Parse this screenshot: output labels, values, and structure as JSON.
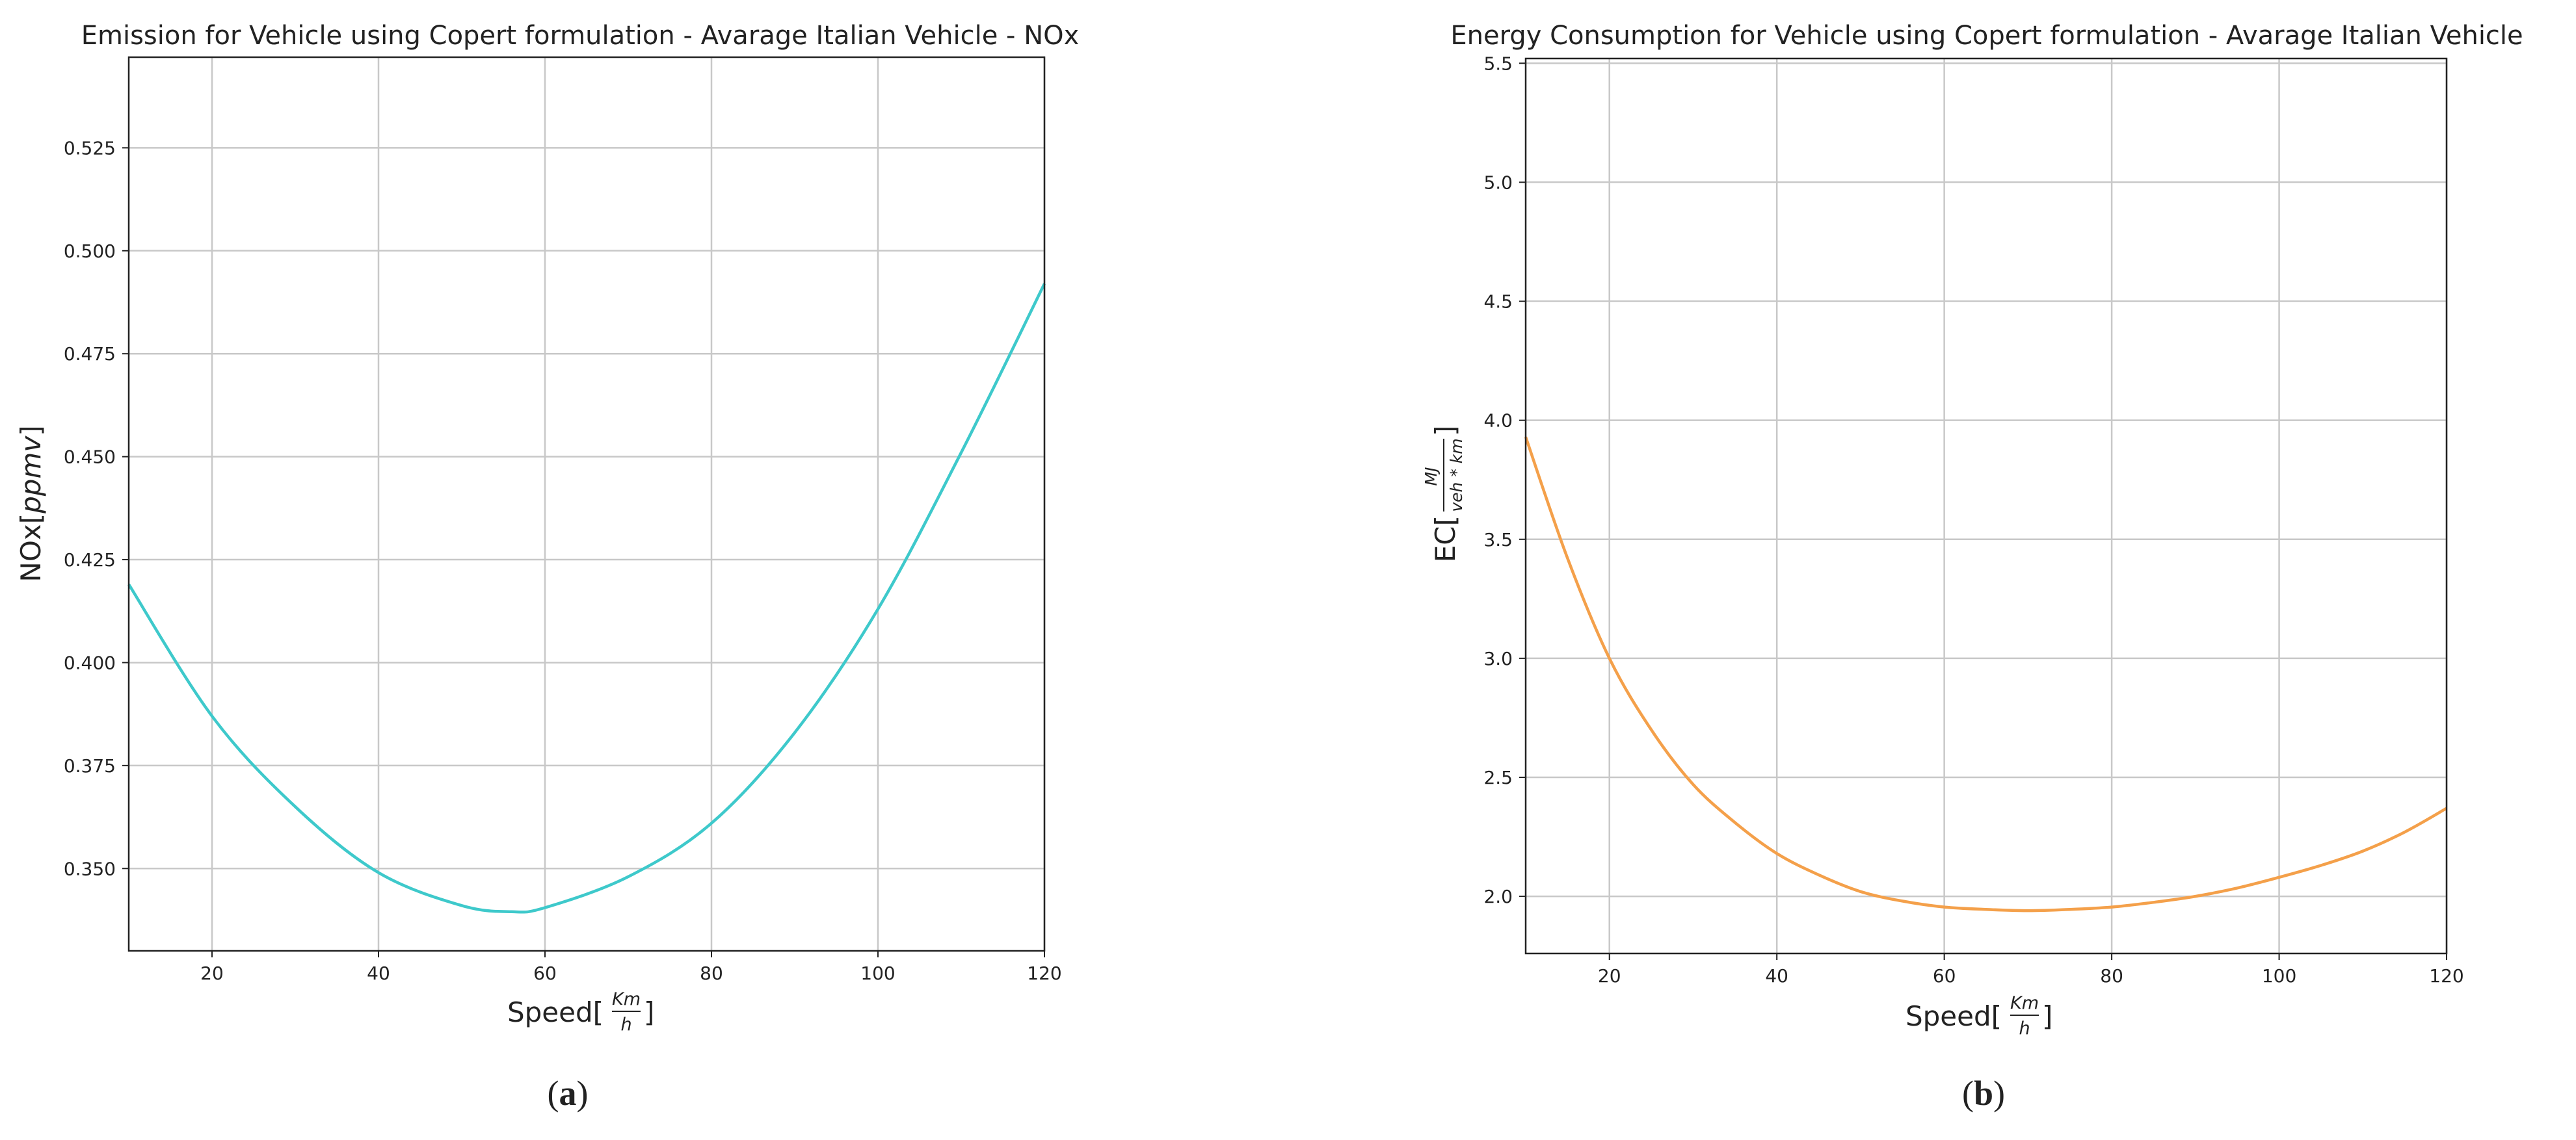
{
  "colors": {
    "nox_line": "#3EC9CB",
    "ec_line": "#F4A04A",
    "grid": "#c8c8c8",
    "axis": "#222222"
  },
  "chart_data": [
    {
      "type": "line",
      "title": "Emission for Vehicle using Copert formulation - Avarage Italian Vehicle - NOx",
      "xlabel": "Speed[Km/h]",
      "xlabel_parts": {
        "prefix": "Speed[",
        "num": "Km",
        "den": "h",
        "suffix": "]"
      },
      "ylabel": "NOx[ppmv]",
      "ylabel_parts": {
        "prefix": "NOx[",
        "italic": "ppmv",
        "suffix": "]"
      },
      "xlim": [
        10,
        120
      ],
      "ylim": [
        0.33,
        0.547
      ],
      "xticks": [
        20,
        40,
        60,
        80,
        100,
        120
      ],
      "xtick_labels": [
        "20",
        "40",
        "60",
        "80",
        "100",
        "120"
      ],
      "yticks": [
        0.35,
        0.375,
        0.4,
        0.425,
        0.45,
        0.475,
        0.5,
        0.525
      ],
      "ytick_labels": [
        "0.350",
        "0.375",
        "0.400",
        "0.425",
        "0.450",
        "0.475",
        "0.500",
        "0.525"
      ],
      "grid": true,
      "series": [
        {
          "name": "NOx",
          "x": [
            10,
            20,
            30,
            40,
            50,
            56,
            60,
            70,
            80,
            90,
            100,
            110,
            120
          ],
          "y": [
            0.419,
            0.387,
            0.365,
            0.349,
            0.341,
            0.3395,
            0.3405,
            0.348,
            0.361,
            0.383,
            0.413,
            0.451,
            0.492
          ]
        }
      ],
      "caption": "a"
    },
    {
      "type": "line",
      "title": "Energy Consumption for Vehicle using Copert formulation - Avarage Italian Vehicle",
      "xlabel": "Speed[Km/h]",
      "xlabel_parts": {
        "prefix": "Speed[",
        "num": "Km",
        "den": "h",
        "suffix": "]"
      },
      "ylabel": "EC[MJ/veh*km]",
      "ylabel_parts": {
        "prefix": "EC[",
        "num": "MJ",
        "den": "veh * km",
        "suffix": "]"
      },
      "xlim": [
        10,
        120
      ],
      "ylim": [
        1.76,
        5.52
      ],
      "xticks": [
        20,
        40,
        60,
        80,
        100,
        120
      ],
      "xtick_labels": [
        "20",
        "40",
        "60",
        "80",
        "100",
        "120"
      ],
      "yticks": [
        2.0,
        2.5,
        3.0,
        3.5,
        4.0,
        4.5,
        5.0,
        5.5
      ],
      "ytick_labels": [
        "2.0",
        "2.5",
        "3.0",
        "3.5",
        "4.0",
        "4.5",
        "5.0",
        "5.5"
      ],
      "grid": true,
      "series": [
        {
          "name": "EC",
          "x": [
            10,
            15,
            20,
            25,
            30,
            35,
            40,
            45,
            50,
            55,
            60,
            65,
            70,
            75,
            80,
            85,
            90,
            95,
            100,
            105,
            110,
            115,
            120
          ],
          "y": [
            3.93,
            3.42,
            3.0,
            2.7,
            2.47,
            2.31,
            2.18,
            2.09,
            2.02,
            1.98,
            1.955,
            1.945,
            1.94,
            1.945,
            1.955,
            1.975,
            2.0,
            2.035,
            2.08,
            2.13,
            2.19,
            2.27,
            2.37
          ]
        }
      ],
      "caption": "b"
    }
  ]
}
